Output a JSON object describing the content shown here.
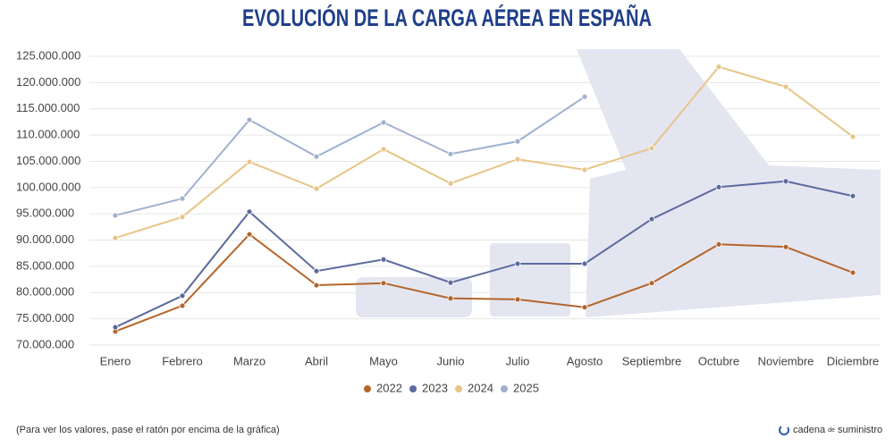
{
  "chart_data": {
    "type": "line",
    "title": "EVOLUCIÓN DE LA CARGA AÉREA EN ESPAÑA",
    "categories": [
      "Enero",
      "Febrero",
      "Marzo",
      "Abril",
      "Mayo",
      "Junio",
      "Julio",
      "Agosto",
      "Septiembre",
      "Octubre",
      "Noviembre",
      "Diciembre"
    ],
    "series": [
      {
        "name": "2022",
        "color": "#b5652a",
        "values": [
          72600000,
          77500000,
          91100000,
          81400000,
          81800000,
          78900000,
          78700000,
          77200000,
          81800000,
          89200000,
          88700000,
          83800000
        ]
      },
      {
        "name": "2023",
        "color": "#5c6a9e",
        "values": [
          73400000,
          79400000,
          95400000,
          84100000,
          86300000,
          81900000,
          85500000,
          85500000,
          94000000,
          100100000,
          101200000,
          98400000
        ]
      },
      {
        "name": "2024",
        "color": "#e8c486",
        "values": [
          90400000,
          94400000,
          104900000,
          99800000,
          107300000,
          100800000,
          105400000,
          103400000,
          107500000,
          123000000,
          119200000,
          109700000
        ]
      },
      {
        "name": "2025",
        "color": "#9fb0d0",
        "values": [
          94700000,
          97900000,
          112900000,
          105900000,
          112400000,
          106400000,
          108800000,
          117300000,
          null,
          null,
          null,
          null
        ]
      }
    ],
    "ylim": [
      70000000,
      125000000
    ],
    "yticks": [
      {
        "value": 70000000,
        "label": "70.000.000"
      },
      {
        "value": 75000000,
        "label": "75.000.000"
      },
      {
        "value": 80000000,
        "label": "80.000.000"
      },
      {
        "value": 85000000,
        "label": "85.000.000"
      },
      {
        "value": 90000000,
        "label": "90.000.000"
      },
      {
        "value": 95000000,
        "label": "95.000.000"
      },
      {
        "value": 100000000,
        "label": "100.000.000"
      },
      {
        "value": 105000000,
        "label": "105.000.000"
      },
      {
        "value": 110000000,
        "label": "110.000.000"
      },
      {
        "value": 115000000,
        "label": "115.000.000"
      },
      {
        "value": 120000000,
        "label": "120.000.000"
      },
      {
        "value": 125000000,
        "label": "125.000.000"
      }
    ],
    "grid": true,
    "note": "(Para ver los valores, pase el ratón por encima de la gráfica)",
    "brand": {
      "a": "cadena",
      "b": "de",
      "c": "suministro"
    }
  }
}
